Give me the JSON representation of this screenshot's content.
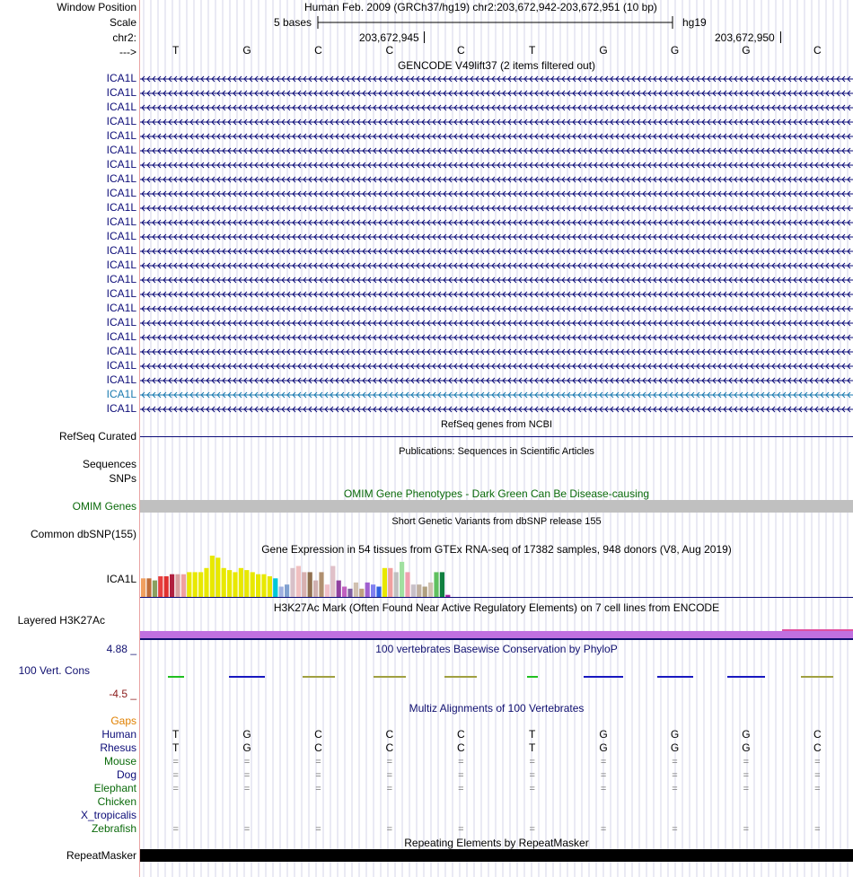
{
  "header": {
    "window_position_label": "Window Position",
    "scale_label": "Scale",
    "chrom_label": "chr2:",
    "strand_label": "--->",
    "assembly_text": "Human Feb. 2009 (GRCh37/hg19)   chr2:203,672,942-203,672,951 (10 bp)",
    "scale_text": "5 bases",
    "scale_db": "hg19",
    "coord1": "203,672,945",
    "coord2": "203,672,950"
  },
  "bases": [
    "T",
    "G",
    "C",
    "C",
    "C",
    "T",
    "G",
    "G",
    "G",
    "C"
  ],
  "gencode": {
    "title": "GENCODE V49lift37 (2 items filtered out)",
    "items": [
      "ICA1L",
      "ICA1L",
      "ICA1L",
      "ICA1L",
      "ICA1L",
      "ICA1L",
      "ICA1L",
      "ICA1L",
      "ICA1L",
      "ICA1L",
      "ICA1L",
      "ICA1L",
      "ICA1L",
      "ICA1L",
      "ICA1L",
      "ICA1L",
      "ICA1L",
      "ICA1L",
      "ICA1L",
      "ICA1L",
      "ICA1L",
      "ICA1L",
      "ICA1L",
      "ICA1L"
    ],
    "highlight_index": 22,
    "color": "#0c0c78",
    "highlight_color": "#1a7ab0"
  },
  "refseq": {
    "title": "RefSeq genes from NCBI",
    "label": "RefSeq Curated",
    "color": "#0c0c78"
  },
  "publications": {
    "title": "Publications: Sequences in Scientific Articles",
    "label1": "Sequences",
    "label2": "SNPs"
  },
  "omim": {
    "title": "OMIM Gene Phenotypes - Dark Green Can Be Disease-causing",
    "label": "OMIM Genes",
    "color": "#0a6a0a"
  },
  "dbsnp": {
    "title": "Short Genetic Variants from dbSNP release 155",
    "label": "Common dbSNP(155)"
  },
  "gtex": {
    "title": "Gene Expression in 54 tissues from GTEx RNA-seq of 17382 samples, 948 donors (V8, Aug 2019)",
    "label": "ICA1L",
    "values": [
      0.45,
      0.45,
      0.4,
      0.5,
      0.5,
      0.55,
      0.55,
      0.55,
      0.6,
      0.6,
      0.6,
      0.7,
      1.0,
      0.95,
      0.7,
      0.65,
      0.6,
      0.7,
      0.65,
      0.6,
      0.55,
      0.55,
      0.5,
      0.45,
      0.25,
      0.3,
      0.7,
      0.75,
      0.6,
      0.6,
      0.4,
      0.6,
      0.3,
      0.75,
      0.4,
      0.25,
      0.2,
      0.35,
      0.2,
      0.35,
      0.3,
      0.25,
      0.7,
      0.7,
      0.6,
      0.85,
      0.6,
      0.3,
      0.3,
      0.25,
      0.35,
      0.6,
      0.6,
      0.05
    ],
    "colors": [
      "#f0a060",
      "#c06e3a",
      "#8aa060",
      "#e84040",
      "#e03030",
      "#b02040",
      "#d8a0a0",
      "#f0a0a0",
      "#e8e800",
      "#e8e800",
      "#e8e800",
      "#e8e800",
      "#e8e800",
      "#e8e800",
      "#e8e800",
      "#e8e800",
      "#e8e800",
      "#e8e800",
      "#e8e800",
      "#e8e800",
      "#e8e800",
      "#e8e800",
      "#e8e800",
      "#00c8d8",
      "#a0b0e0",
      "#80a0d0",
      "#d8c0c8",
      "#f0c0c0",
      "#d8b0b0",
      "#907050",
      "#d0b0b0",
      "#b09070",
      "#f0c0c8",
      "#e0c0c8",
      "#9040a0",
      "#c060c0",
      "#8060a0",
      "#d0c0b0",
      "#c0a080",
      "#a060d0",
      "#8080f0",
      "#3060e0",
      "#e8e800",
      "#f0a0a0",
      "#c0c0c0",
      "#a0e0a0",
      "#f0a0b0",
      "#c8c0c8",
      "#c0b0a0",
      "#b0a080",
      "#d0c0b0",
      "#60c060",
      "#108040",
      "#a020a0"
    ]
  },
  "h3k27ac": {
    "title": "H3K27Ac Mark (Often Found Near Active Regulatory Elements) on 7 cell lines from ENCODE",
    "label": "Layered H3K27Ac",
    "color": "#c070e0"
  },
  "phylop": {
    "title": "100 vertebrates Basewise Conservation by PhyloP",
    "label": "100 Vert. Cons",
    "max": "4.88 _",
    "min": "-4.5 _",
    "color": "#101070",
    "min_color": "#8b1a1a"
  },
  "multiz": {
    "title": "Multiz Alignments of 100 Vertebrates",
    "gaps_label": "Gaps",
    "species": [
      {
        "name": "Human",
        "color": "#0c0c78",
        "row": "T G C C C T G G G C"
      },
      {
        "name": "Rhesus",
        "color": "#0c0c78",
        "row": "T G C C C T G G G C"
      },
      {
        "name": "Mouse",
        "color": "#0a6a0a",
        "row": "= = = = = = = = = ="
      },
      {
        "name": "Dog",
        "color": "#0c0c78",
        "row": "= = = = = = = = = ="
      },
      {
        "name": "Elephant",
        "color": "#0a6a0a",
        "row": "= = = = = = = = = ="
      },
      {
        "name": "Chicken",
        "color": "#0a6a0a",
        "row": ""
      },
      {
        "name": "X_tropicalis",
        "color": "#0c0c78",
        "row": ""
      },
      {
        "name": "Zebrafish",
        "color": "#0a6a0a",
        "row": "= = = = = = = = = ="
      }
    ],
    "gaps_color": "#e08000"
  },
  "repeatmasker": {
    "title": "Repeating Elements by RepeatMasker",
    "label": "RepeatMasker"
  }
}
